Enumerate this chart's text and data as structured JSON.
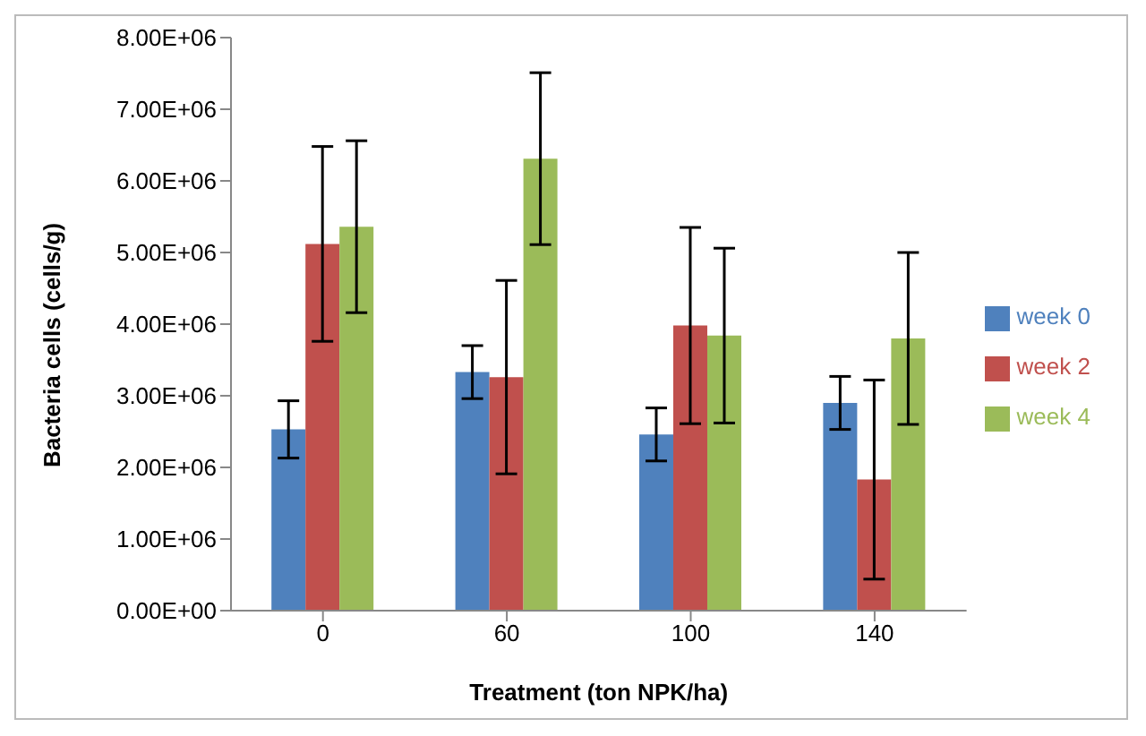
{
  "chart_data": {
    "type": "bar",
    "xlabel": "Treatment (ton NPK/ha)",
    "ylabel": "Bacteria cells (cells/g)",
    "categories": [
      "0",
      "60",
      "100",
      "140"
    ],
    "series": [
      {
        "name": "week 0",
        "color": "#4f81bd",
        "values": [
          2530000,
          3330000,
          2460000,
          2900000
        ],
        "errors": [
          400000,
          370000,
          370000,
          370000
        ]
      },
      {
        "name": "week 2",
        "color": "#c0504d",
        "values": [
          5120000,
          3260000,
          3980000,
          1830000
        ],
        "errors": [
          1360000,
          1350000,
          1370000,
          1390000
        ]
      },
      {
        "name": "week 4",
        "color": "#9bbb59",
        "values": [
          5360000,
          6310000,
          3840000,
          3800000
        ],
        "errors": [
          1200000,
          1200000,
          1220000,
          1200000
        ]
      }
    ],
    "ylim": [
      0,
      8000000
    ],
    "yticks": [
      {
        "value": 0,
        "label": "0.00E+00"
      },
      {
        "value": 1000000,
        "label": "1.00E+06"
      },
      {
        "value": 2000000,
        "label": "2.00E+06"
      },
      {
        "value": 3000000,
        "label": "3.00E+06"
      },
      {
        "value": 4000000,
        "label": "4.00E+06"
      },
      {
        "value": 5000000,
        "label": "5.00E+06"
      },
      {
        "value": 6000000,
        "label": "6.00E+06"
      },
      {
        "value": 7000000,
        "label": "7.00E+06"
      },
      {
        "value": 8000000,
        "label": "8.00E+06"
      }
    ],
    "grid": false,
    "legend": "right"
  }
}
